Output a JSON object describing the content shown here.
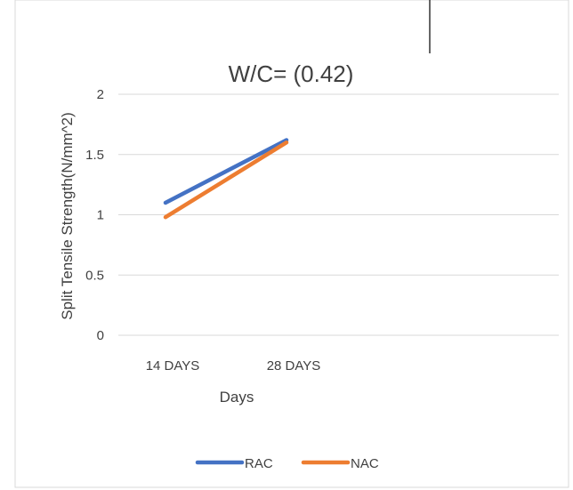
{
  "chart_data": {
    "type": "line",
    "title": "W/C= (0.42)",
    "xlabel": "Days",
    "ylabel": "Split Tensile Strength(N/mm^2)",
    "categories": [
      "14 DAYS",
      "28 DAYS"
    ],
    "ylim": [
      0,
      2
    ],
    "yticks": [
      "0",
      "0.5",
      "1",
      "1.5",
      "2"
    ],
    "grid": true,
    "legend_position": "bottom",
    "series": [
      {
        "name": "RAC",
        "values": [
          1.1,
          1.62
        ],
        "color": "#4472c4"
      },
      {
        "name": "NAC",
        "values": [
          0.98,
          1.6
        ],
        "color": "#ed7d31"
      }
    ]
  }
}
